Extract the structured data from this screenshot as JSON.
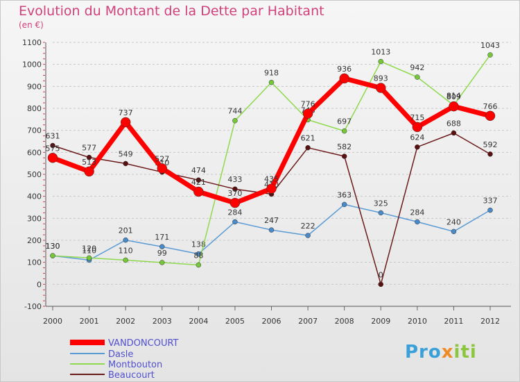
{
  "title": "Evolution du Montant de la Dette par Habitant",
  "subtitle": "(en €)",
  "logo": "Proxiti",
  "colors": {
    "title": "#d0407a",
    "VANDONCOURT": "#ff0000",
    "Dasle": "#5b9bd5",
    "Montbouton": "#8ed94e",
    "Beaucourt": "#6b1a1a",
    "legend_text": "#5050d0"
  },
  "chart_data": {
    "type": "line",
    "title": "Evolution du Montant de la Dette par Habitant",
    "subtitle": "(en €)",
    "x": [
      "2000",
      "2001",
      "2002",
      "2003",
      "2004",
      "2005",
      "2006",
      "2007",
      "2008",
      "2009",
      "2010",
      "2011",
      "2012"
    ],
    "yticks": [
      -100,
      0,
      100,
      200,
      300,
      400,
      500,
      600,
      700,
      800,
      900,
      1000,
      1100
    ],
    "ylim": [
      -100,
      1100
    ],
    "grid": "horizontal dashed",
    "legend_position": "bottom-left",
    "series": [
      {
        "name": "VANDONCOURT",
        "values": [
          575,
          513,
          737,
          527,
          421,
          370,
          435,
          776,
          936,
          893,
          715,
          809,
          766
        ]
      },
      {
        "name": "Dasle",
        "values": [
          130,
          110,
          201,
          171,
          138,
          284,
          247,
          222,
          363,
          325,
          284,
          240,
          337
        ]
      },
      {
        "name": "Montbouton",
        "values": [
          130,
          120,
          110,
          99,
          88,
          744,
          918,
          748,
          697,
          1013,
          942,
          814,
          1043
        ]
      },
      {
        "name": "Beaucourt",
        "values": [
          631,
          577,
          549,
          510,
          474,
          433,
          410,
          621,
          582,
          0,
          624,
          688,
          592
        ]
      }
    ]
  }
}
